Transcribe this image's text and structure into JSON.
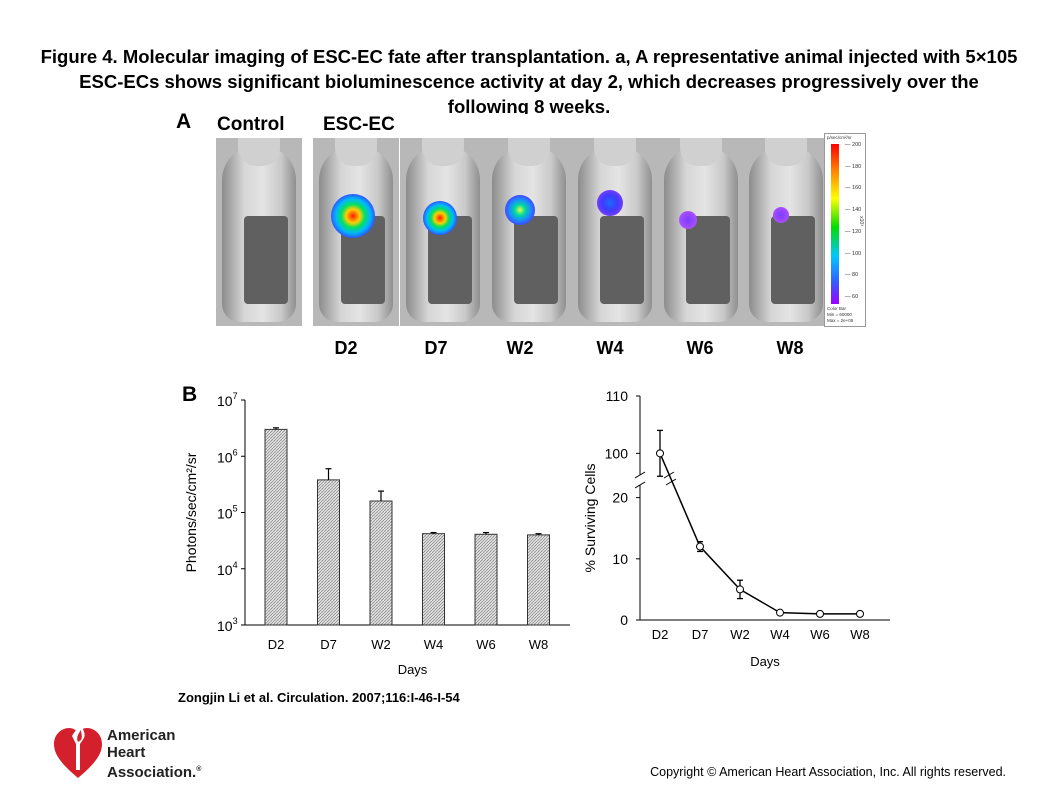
{
  "title": "Figure 4. Molecular imaging of ESC-EC fate after transplantation. a, A representative animal injected with 5×105 ESC-ECs shows significant bioluminescence activity at day 2, which decreases progressively over the following 8 weeks.",
  "panel_a": {
    "letter": "A",
    "control_label": "Control",
    "escec_label": "ESC-EC",
    "timepoints": [
      "D2",
      "D7",
      "W2",
      "W4",
      "W6",
      "W8"
    ],
    "colorbar": {
      "header": "p/sec/cm²/sr",
      "ticks": [
        "200",
        "180",
        "160",
        "140",
        "120",
        "100",
        "80",
        "60"
      ],
      "unit": "x10³",
      "footer_lines": [
        "Color Bar",
        "Min = 60000",
        "Max = 2e+05"
      ]
    }
  },
  "panel_b": {
    "letter": "B"
  },
  "chart_data": [
    {
      "type": "bar",
      "ylabel": "Photons/sec/cm²/sr",
      "xlabel": "Days",
      "categories": [
        "D2",
        "D7",
        "W2",
        "W4",
        "W6",
        "W8"
      ],
      "values": [
        3000000,
        380000,
        160000,
        42000,
        41000,
        40000
      ],
      "error_upper": [
        3200000,
        600000,
        240000,
        44000,
        44000,
        42000
      ],
      "y_scale": "log",
      "ylim": [
        1000,
        10000000
      ],
      "y_ticks": [
        {
          "base": "10",
          "exp": "3",
          "value": 1000
        },
        {
          "base": "10",
          "exp": "4",
          "value": 10000
        },
        {
          "base": "10",
          "exp": "5",
          "value": 100000
        },
        {
          "base": "10",
          "exp": "6",
          "value": 1000000
        },
        {
          "base": "10",
          "exp": "7",
          "value": 10000000
        }
      ],
      "grid": false
    },
    {
      "type": "line",
      "ylabel": "% Surviving Cells",
      "xlabel": "Days",
      "categories": [
        "D2",
        "D7",
        "W2",
        "W4",
        "W6",
        "W8"
      ],
      "values": [
        100,
        12,
        5,
        1.2,
        1,
        1
      ],
      "error": [
        4,
        0.8,
        1.5,
        0,
        0,
        0
      ],
      "y_ticks": [
        "0",
        "10",
        "20",
        "100",
        "110"
      ],
      "broken_axis": {
        "lower": [
          0,
          25
        ],
        "upper": [
          95,
          110
        ]
      },
      "grid": false
    }
  ],
  "citation": "Zongjin Li et al. Circulation. 2007;116:I-46-I-54",
  "copyright": "Copyright © American Heart Association, Inc. All rights reserved.",
  "logo": {
    "lines": [
      "American",
      "Heart",
      "Association."
    ],
    "mark": "®",
    "color": "#d41f2c"
  }
}
